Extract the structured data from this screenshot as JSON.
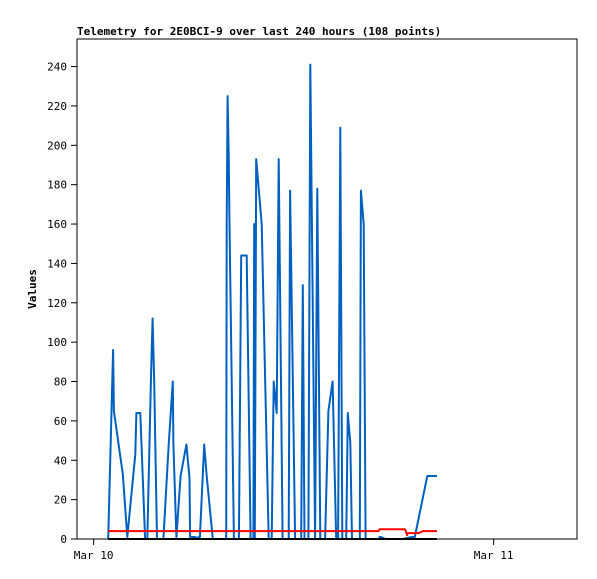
{
  "chart_data": {
    "type": "line",
    "title": "Telemetry for 2E0BCI-9 over last 240 hours (108 points)",
    "xlabel": "",
    "ylabel": "Values",
    "ylim": [
      0,
      254
    ],
    "yticks": [
      0,
      20,
      40,
      60,
      80,
      100,
      120,
      140,
      160,
      180,
      200,
      220,
      240
    ],
    "xlim": [
      "2024-03-09T23:00",
      "2024-03-11T05:00"
    ],
    "xticks": [
      {
        "label": "Mar 10",
        "x": "2024-03-10T00:00"
      },
      {
        "label": "Mar 11",
        "x": "2024-03-11T00:00"
      }
    ],
    "grid": false,
    "series": [
      {
        "color": "#0060c0",
        "x": [
          "2024-03-10T00:52",
          "2024-03-10T00:53",
          "2024-03-10T01:10",
          "2024-03-10T01:13",
          "2024-03-10T01:45",
          "2024-03-10T02:01",
          "2024-03-10T02:30",
          "2024-03-10T02:34",
          "2024-03-10T02:42",
          "2024-03-10T02:48",
          "2024-03-10T03:05",
          "2024-03-10T03:13",
          "2024-03-10T03:26",
          "2024-03-10T03:32",
          "2024-03-10T03:38",
          "2024-03-10T03:48",
          "2024-03-10T04:03",
          "2024-03-10T04:11",
          "2024-03-10T04:30",
          "2024-03-10T04:45",
          "2024-03-10T04:47",
          "2024-03-10T04:58",
          "2024-03-10T05:13",
          "2024-03-10T05:34",
          "2024-03-10T05:45",
          "2024-03-10T05:47",
          "2024-03-10T06:05",
          "2024-03-10T06:16",
          "2024-03-10T06:17",
          "2024-03-10T06:22",
          "2024-03-10T06:38",
          "2024-03-10T06:47",
          "2024-03-10T07:09",
          "2024-03-10T07:42",
          "2024-03-10T07:57",
          "2024-03-10T07:59",
          "2024-03-10T08:02",
          "2024-03-10T08:06",
          "2024-03-10T08:09",
          "2024-03-10T08:25",
          "2024-03-10T08:43",
          "2024-03-10T08:51",
          "2024-03-10T09:04",
          "2024-03-10T09:11",
          "2024-03-10T09:25",
          "2024-03-10T09:35",
          "2024-03-10T09:38",
          "2024-03-10T09:40",
          "2024-03-10T09:45",
          "2024-03-10T10:05",
          "2024-03-10T10:30",
          "2024-03-10T10:33",
          "2024-03-10T10:41",
          "2024-03-10T10:48",
          "2024-03-10T10:59",
          "2024-03-10T11:06",
          "2024-03-10T11:20",
          "2024-03-10T11:27",
          "2024-03-10T11:32",
          "2024-03-10T11:42",
          "2024-03-10T11:47",
          "2024-03-10T12:05",
          "2024-03-10T12:17",
          "2024-03-10T12:27",
          "2024-03-10T12:33",
          "2024-03-10T12:39",
          "2024-03-10T12:53",
          "2024-03-10T13:00",
          "2024-03-10T13:17",
          "2024-03-10T13:25",
          "2024-03-10T13:36",
          "2024-03-10T13:40",
          "2024-03-10T13:48",
          "2024-03-10T13:53",
          "2024-03-10T14:05",
          "2024-03-10T14:20",
          "2024-03-10T14:33",
          "2024-03-10T14:40",
          "2024-03-10T14:48",
          "2024-03-10T14:55",
          "2024-03-10T15:03",
          "2024-03-10T15:09",
          "2024-03-10T15:15",
          "2024-03-10T15:24",
          "2024-03-10T15:30",
          "2024-03-10T15:41",
          "2024-03-10T15:50",
          "2024-03-10T15:58",
          "2024-03-10T16:02",
          "2024-03-10T16:12",
          "2024-03-10T16:19",
          "2024-03-10T16:33",
          "2024-03-10T16:56",
          "2024-03-10T17:07",
          "2024-03-10T17:09",
          "2024-03-10T17:15",
          "2024-03-10T17:31",
          "2024-03-10T17:36",
          "2024-03-10T17:38",
          "2024-03-10T17:46",
          "2024-03-10T17:51",
          "2024-03-10T18:05",
          "2024-03-10T18:16",
          "2024-03-10T18:33",
          "2024-03-10T19:05",
          "2024-03-10T19:16",
          "2024-03-10T20:01",
          "2024-03-10T20:36"
        ],
        "y": [
          0,
          4,
          96,
          65,
          33,
          1,
          43,
          64,
          64,
          64,
          0,
          0,
          80,
          112,
          80,
          0,
          0,
          0,
          48,
          80,
          48,
          1,
          32,
          48,
          31,
          1,
          1,
          0,
          1,
          0,
          48,
          32,
          0,
          0,
          0,
          160,
          225,
          195,
          160,
          0,
          0,
          144,
          144,
          144,
          0,
          0,
          160,
          0,
          193,
          160,
          0,
          0,
          0,
          80,
          64,
          193,
          0,
          0,
          0,
          0,
          177,
          0,
          0,
          0,
          129,
          0,
          0,
          241,
          0,
          178,
          0,
          0,
          0,
          0,
          65,
          80,
          0,
          0,
          209,
          0,
          0,
          0,
          64,
          49,
          0,
          0,
          0,
          0,
          177,
          160,
          0,
          0,
          0,
          0,
          1,
          1,
          0,
          0,
          0,
          0,
          0,
          0,
          0,
          0,
          1,
          1,
          32,
          32
        ]
      },
      {
        "color": "#ff0000",
        "x": [
          "2024-03-10T00:52",
          "2024-03-10T17:05",
          "2024-03-10T17:10",
          "2024-03-10T18:40",
          "2024-03-10T18:44",
          "2024-03-10T18:48",
          "2024-03-10T18:51",
          "2024-03-10T19:30",
          "2024-03-10T19:45",
          "2024-03-10T20:36"
        ],
        "y": [
          4,
          4,
          5,
          5,
          4,
          2,
          3,
          3,
          4,
          4
        ]
      },
      {
        "color": "#000000",
        "x": [
          "2024-03-10T00:52",
          "2024-03-10T20:36"
        ],
        "y": [
          0,
          0
        ]
      }
    ]
  }
}
